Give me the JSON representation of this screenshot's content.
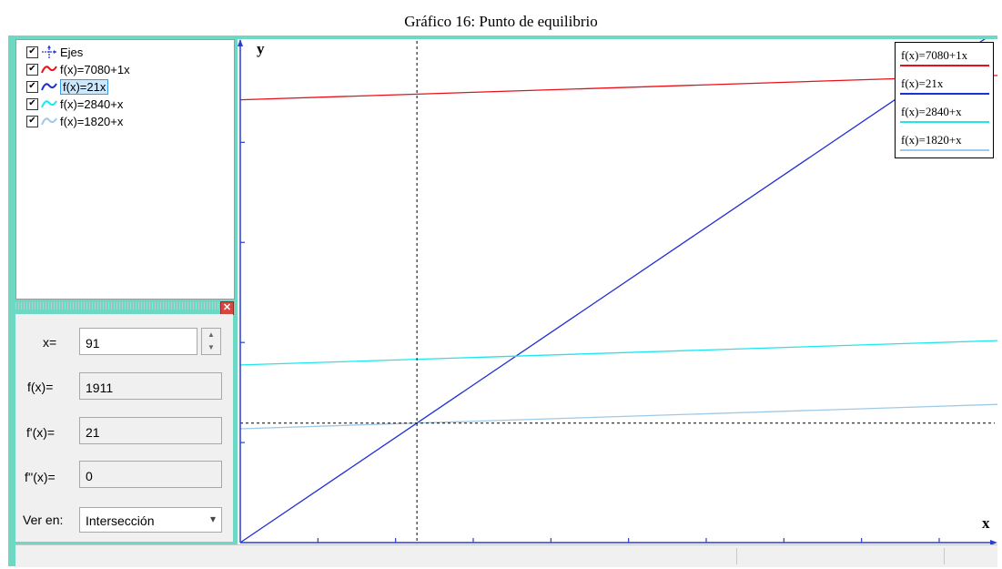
{
  "caption": "Gráfico  16: Punto de equilibrio",
  "function_list": [
    {
      "label": "Ejes",
      "checked": true,
      "icon": "axes-icon",
      "color": "#2d3cd0"
    },
    {
      "label": "f(x)=7080+1x",
      "checked": true,
      "icon": "curve-icon",
      "color": "#e8101a"
    },
    {
      "label": "f(x)=21x",
      "checked": true,
      "icon": "curve-icon",
      "color": "#1f2fd6",
      "selected": true
    },
    {
      "label": "f(x)=2840+x",
      "checked": true,
      "icon": "curve-icon",
      "color": "#1ee6ee"
    },
    {
      "label": "f(x)=1820+x",
      "checked": true,
      "icon": "curve-icon",
      "color": "#9fc9e6"
    }
  ],
  "calc": {
    "x_label": "x=",
    "x_value": "91",
    "fx_label": "f(x)=",
    "fx_value": "1911",
    "fpx_label": "f'(x)=",
    "fpx_value": "21",
    "fppx_label": "f''(x)=",
    "fppx_value": "0",
    "view_label": "Ver en:",
    "view_value": "Intersección"
  },
  "graph": {
    "x_axis_label": "x",
    "y_axis_label": "y",
    "legend": [
      {
        "label": "f(x)=7080+1x",
        "color": "#e8101a"
      },
      {
        "label": "f(x)=21x",
        "color": "#1f2fd6"
      },
      {
        "label": "f(x)=2840+x",
        "color": "#1ee6ee"
      },
      {
        "label": "f(x)=1820+x",
        "color": "#9fc9e6"
      }
    ]
  },
  "chart_data": {
    "type": "line",
    "title": "",
    "xlabel": "x",
    "ylabel": "y",
    "xlim": [
      0,
      390
    ],
    "ylim": [
      0,
      8050
    ],
    "series": [
      {
        "name": "f(x)=7080+1x",
        "x": [
          0,
          390
        ],
        "y": [
          7080,
          7470
        ],
        "color": "#e8101a"
      },
      {
        "name": "f(x)=21x",
        "x": [
          0,
          390
        ],
        "y": [
          0,
          8190
        ],
        "color": "#1f2fd6"
      },
      {
        "name": "f(x)=2840+x",
        "x": [
          0,
          390
        ],
        "y": [
          2840,
          3230
        ],
        "color": "#1ee6ee"
      },
      {
        "name": "f(x)=1820+x",
        "x": [
          0,
          390
        ],
        "y": [
          1820,
          2210
        ],
        "color": "#9fc9e6"
      }
    ],
    "crosshair": {
      "x": 91,
      "y": 1911
    }
  }
}
